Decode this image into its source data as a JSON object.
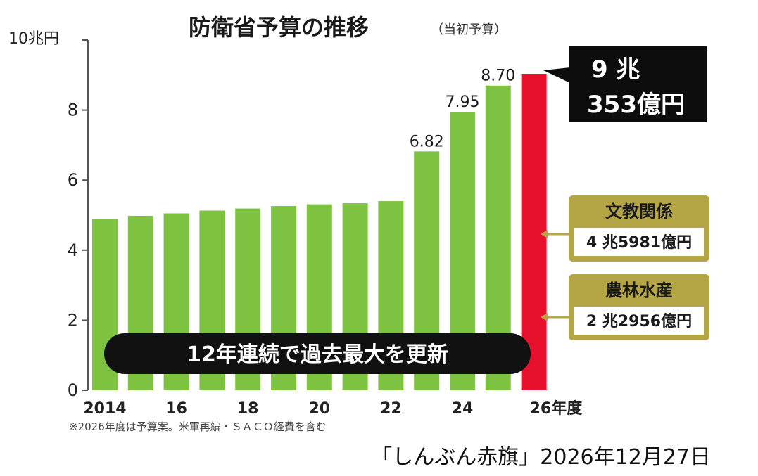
{
  "chart_data": {
    "type": "bar",
    "title": "防衛省予算の推移",
    "subtitle": "（当初予算）",
    "y_unit_label": "10兆円",
    "ylim": [
      0,
      10
    ],
    "y_ticks": [
      "0",
      "2",
      "4",
      "6",
      "8"
    ],
    "x_tick_labels": [
      "2014",
      "16",
      "18",
      "20",
      "22",
      "24",
      "26年度"
    ],
    "categories": [
      "2014",
      "2015",
      "2016",
      "2017",
      "2018",
      "2019",
      "2020",
      "2021",
      "2022",
      "2023",
      "2024",
      "2025",
      "2026"
    ],
    "values": [
      4.88,
      4.98,
      5.05,
      5.13,
      5.19,
      5.26,
      5.31,
      5.34,
      5.4,
      6.82,
      7.95,
      8.7,
      9.0353
    ],
    "data_labels": [
      "",
      "",
      "",
      "",
      "",
      "",
      "",
      "",
      "",
      "6.82",
      "7.95",
      "8.70",
      ""
    ],
    "colors": {
      "bar": "#7ec242",
      "highlight": "#e8112d",
      "label_box": "#b5a645",
      "callout": "#0d0d0d"
    },
    "grid": false,
    "highlight_callout": {
      "line1": "9 兆",
      "line2": "353億円"
    },
    "comparison_boxes": [
      {
        "title": "文教関係",
        "value": "4 兆5981億円",
        "y_value": 4.5981
      },
      {
        "title": "農林水産",
        "value": "2 兆2956億円",
        "y_value": 2.2956
      }
    ],
    "banner": "12年連続で過去最大を更新",
    "footnote": "※2026年度は予算案。米軍再編・ＳＡＣＯ経費を含む"
  },
  "source": "「しんぶん赤旗」2026年12月27日"
}
